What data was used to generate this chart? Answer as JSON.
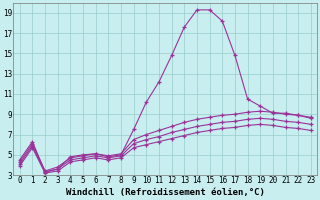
{
  "background_color": "#c8eef0",
  "line_color": "#993399",
  "grid_color": "#99cccc",
  "xlabel": "Windchill (Refroidissement éolien,°C)",
  "xlabel_fontsize": 6.5,
  "tick_fontsize": 5.5,
  "xlim": [
    -0.5,
    23.5
  ],
  "ylim": [
    3,
    20
  ],
  "yticks": [
    3,
    5,
    7,
    9,
    11,
    13,
    15,
    17,
    19
  ],
  "xticks": [
    0,
    1,
    2,
    3,
    4,
    5,
    6,
    7,
    8,
    9,
    10,
    11,
    12,
    13,
    14,
    15,
    16,
    17,
    18,
    19,
    20,
    21,
    22,
    23
  ],
  "series": [
    [
      4.5,
      6.3,
      3.3,
      3.6,
      4.8,
      5.0,
      5.1,
      4.8,
      5.0,
      7.5,
      10.2,
      12.2,
      14.8,
      17.6,
      19.3,
      19.3,
      18.2,
      14.8,
      10.5,
      9.8,
      9.1,
      9.1,
      8.9,
      8.6
    ],
    [
      4.3,
      6.1,
      3.4,
      3.8,
      4.7,
      4.9,
      5.1,
      4.9,
      5.1,
      6.5,
      7.0,
      7.4,
      7.8,
      8.2,
      8.5,
      8.7,
      8.9,
      9.0,
      9.2,
      9.3,
      9.2,
      9.0,
      8.9,
      8.7
    ],
    [
      4.1,
      5.9,
      3.3,
      3.6,
      4.5,
      4.7,
      4.9,
      4.7,
      4.9,
      6.1,
      6.5,
      6.8,
      7.2,
      7.5,
      7.8,
      8.0,
      8.2,
      8.3,
      8.5,
      8.6,
      8.5,
      8.3,
      8.2,
      8.0
    ],
    [
      3.9,
      5.7,
      3.2,
      3.4,
      4.3,
      4.5,
      4.7,
      4.5,
      4.7,
      5.7,
      6.0,
      6.3,
      6.6,
      6.9,
      7.2,
      7.4,
      7.6,
      7.7,
      7.9,
      8.0,
      7.9,
      7.7,
      7.6,
      7.4
    ]
  ]
}
